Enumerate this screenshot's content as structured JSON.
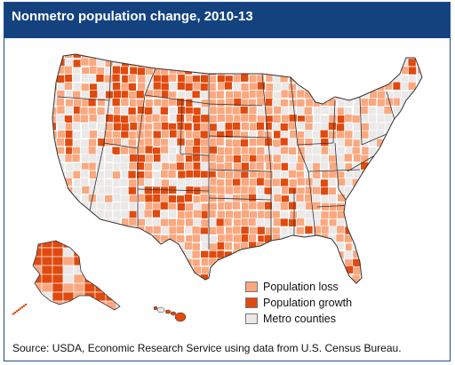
{
  "title": "Nonmetro population change, 2010-13",
  "legend": [
    {
      "label": "Population loss",
      "color": "#f9a880"
    },
    {
      "label": "Population growth",
      "color": "#e04a0f"
    },
    {
      "label": "Metro counties",
      "color": "#ebe8e8"
    }
  ],
  "source": "Source: USDA, Economic Research Service using data from U.S. Census Bureau.",
  "colors": {
    "header_bg": "#14427f",
    "border": "#1f4e8c",
    "state_border": "#333333",
    "county_border": "#ffffff"
  }
}
